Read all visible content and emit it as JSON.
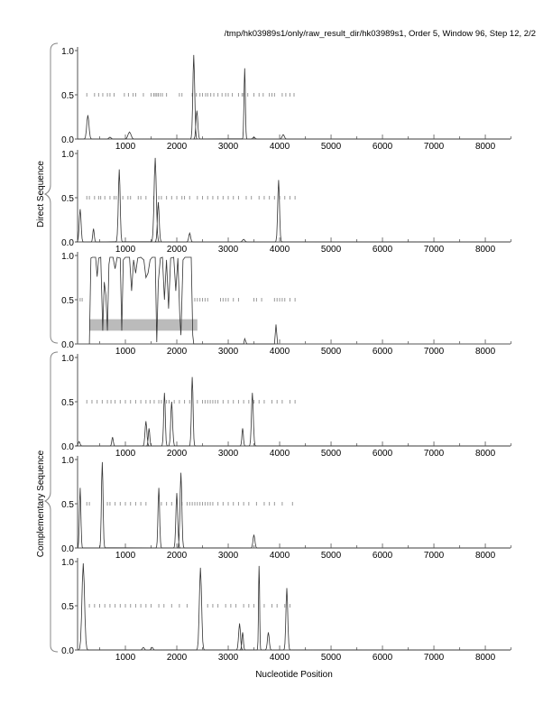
{
  "chart_data": {
    "type": "line",
    "title": "/tmp/hk03989s1/only/raw_result_dir/hk03989s1, Order 5, Window 96, Step 12, 2/2",
    "xlabel": "Nucleotide Position",
    "group_labels": [
      "Direct Sequence",
      "Complementary Sequence"
    ],
    "xlim": [
      70,
      8490
    ],
    "ylim": [
      0,
      1
    ],
    "xticks": [
      1000,
      2000,
      3000,
      4000,
      5000,
      6000,
      7000,
      8000
    ],
    "yticks": [
      "0.0",
      "0.5",
      "1.0"
    ],
    "panels": [
      {
        "group": "Direct Sequence",
        "peaks": [
          [
            270,
            0.27,
            30
          ],
          [
            700,
            0.02,
            30
          ],
          [
            1080,
            0.08,
            40
          ],
          [
            2330,
            0.95,
            25
          ],
          [
            2390,
            0.32,
            25
          ],
          [
            3320,
            0.8,
            18
          ],
          [
            3500,
            0.02,
            30
          ],
          [
            4070,
            0.05,
            30
          ]
        ],
        "markers": [
          250,
          400,
          480,
          560,
          650,
          700,
          780,
          980,
          1060,
          1150,
          1200,
          1350,
          1500,
          1550,
          1580,
          1610,
          1640,
          1680,
          1720,
          1800,
          2050,
          2100,
          2300,
          2380,
          2450,
          2500,
          2560,
          2600,
          2660,
          2720,
          2800,
          2880,
          2950,
          3000,
          3080,
          3200,
          3270,
          3300,
          3380,
          3500,
          3600,
          3680,
          3800,
          3850,
          3900,
          4050,
          4120,
          4200,
          4280
        ]
      },
      {
        "group": "Direct Sequence",
        "peaks": [
          [
            120,
            0.37,
            25
          ],
          [
            380,
            0.15,
            20
          ],
          [
            880,
            0.82,
            25
          ],
          [
            1580,
            0.95,
            30
          ],
          [
            1640,
            0.45,
            25
          ],
          [
            2250,
            0.1,
            25
          ],
          [
            3300,
            0.03,
            30
          ],
          [
            3980,
            0.7,
            25
          ]
        ],
        "markers": [
          250,
          300,
          400,
          480,
          520,
          600,
          700,
          780,
          820,
          950,
          1050,
          1100,
          1250,
          1300,
          1400,
          1550,
          1650,
          1700,
          1800,
          1900,
          2000,
          2100,
          2150,
          2250,
          2400,
          2500,
          2600,
          2700,
          2800,
          2900,
          3000,
          3100,
          3200,
          3350,
          3450,
          3600,
          3700,
          3800,
          3900,
          4000,
          4100,
          4200,
          4300
        ]
      },
      {
        "group": "Direct Sequence",
        "points": [
          [
            300,
            0
          ],
          [
            330,
            0.97
          ],
          [
            360,
            0.98
          ],
          [
            420,
            0.98
          ],
          [
            450,
            0.76
          ],
          [
            480,
            0.97
          ],
          [
            520,
            0.98
          ],
          [
            560,
            0.15
          ],
          [
            590,
            0.7
          ],
          [
            620,
            0.55
          ],
          [
            650,
            0.15
          ],
          [
            680,
            0.9
          ],
          [
            700,
            0.98
          ],
          [
            760,
            0.98
          ],
          [
            800,
            0.85
          ],
          [
            840,
            0.98
          ],
          [
            900,
            0.97
          ],
          [
            930,
            0.15
          ],
          [
            960,
            0.95
          ],
          [
            1000,
            0.98
          ],
          [
            1080,
            0.98
          ],
          [
            1120,
            0.6
          ],
          [
            1160,
            0.95
          ],
          [
            1200,
            0.8
          ],
          [
            1240,
            0.97
          ],
          [
            1300,
            0.98
          ],
          [
            1360,
            0.95
          ],
          [
            1400,
            0.75
          ],
          [
            1440,
            0.8
          ],
          [
            1480,
            0.95
          ],
          [
            1520,
            0.98
          ],
          [
            1580,
            0.98
          ],
          [
            1610,
            0.02
          ],
          [
            1640,
            0.7
          ],
          [
            1680,
            0.97
          ],
          [
            1720,
            0.98
          ],
          [
            1760,
            0.5
          ],
          [
            1800,
            0.95
          ],
          [
            1840,
            0.4
          ],
          [
            1880,
            0.97
          ],
          [
            1940,
            0.98
          ],
          [
            1980,
            0.6
          ],
          [
            2020,
            0.97
          ],
          [
            2060,
            0.3
          ],
          [
            2080,
            0.1
          ],
          [
            2120,
            0.95
          ],
          [
            2160,
            0.98
          ],
          [
            2280,
            0.98
          ],
          [
            2310,
            0.1
          ],
          [
            2330,
            0
          ],
          [
            3300,
            0
          ],
          [
            3320,
            0.06
          ],
          [
            3360,
            0
          ],
          [
            3900,
            0
          ],
          [
            3930,
            0.22
          ],
          [
            3960,
            0
          ]
        ],
        "band": {
          "x": [
            300,
            2400
          ],
          "y": [
            0.15,
            0.28
          ]
        },
        "markers": [
          120,
          160,
          2350,
          2400,
          2450,
          2500,
          2550,
          2600,
          2850,
          2900,
          2950,
          3000,
          3100,
          3200,
          3500,
          3550,
          3650,
          3900,
          3950,
          4000,
          4050,
          4100,
          4200,
          4300
        ]
      },
      {
        "group": "Complementary Sequence",
        "peaks": [
          [
            100,
            0.05,
            25
          ],
          [
            750,
            0.1,
            20
          ],
          [
            1400,
            0.28,
            25
          ],
          [
            1460,
            0.2,
            20
          ],
          [
            1760,
            0.6,
            22
          ],
          [
            1900,
            0.5,
            25
          ],
          [
            2300,
            0.78,
            22
          ],
          [
            3280,
            0.2,
            20
          ],
          [
            3470,
            0.6,
            25
          ]
        ],
        "markers": [
          250,
          350,
          450,
          550,
          650,
          720,
          800,
          900,
          1000,
          1100,
          1200,
          1300,
          1400,
          1480,
          1560,
          1650,
          1700,
          1800,
          1850,
          1950,
          2050,
          2150,
          2250,
          2400,
          2500,
          2550,
          2600,
          2650,
          2700,
          2750,
          2800,
          2900,
          3000,
          3100,
          3200,
          3300,
          3400,
          3500,
          3600,
          3700,
          3850,
          3950,
          4050,
          4200,
          4300
        ]
      },
      {
        "group": "Complementary Sequence",
        "peaks": [
          [
            120,
            0.68,
            20
          ],
          [
            550,
            0.97,
            22
          ],
          [
            1650,
            0.68,
            22
          ],
          [
            2000,
            0.62,
            25
          ],
          [
            2080,
            0.85,
            25
          ],
          [
            3500,
            0.15,
            25
          ]
        ],
        "markers": [
          250,
          300,
          650,
          700,
          800,
          900,
          1000,
          1100,
          1200,
          1300,
          1400,
          1700,
          1800,
          1900,
          2100,
          2200,
          2250,
          2300,
          2350,
          2400,
          2450,
          2500,
          2550,
          2600,
          2650,
          2700,
          2800,
          2900,
          3000,
          3100,
          3200,
          3300,
          3400,
          3550,
          3700,
          3800,
          3900,
          4050,
          4250
        ]
      },
      {
        "group": "Complementary Sequence",
        "peaks": [
          [
            180,
            0.98,
            35
          ],
          [
            1350,
            0.03,
            25
          ],
          [
            1520,
            0.03,
            25
          ],
          [
            2460,
            0.93,
            30
          ],
          [
            3220,
            0.3,
            25
          ],
          [
            3280,
            0.2,
            20
          ],
          [
            3600,
            0.95,
            15
          ],
          [
            3780,
            0.2,
            25
          ],
          [
            4140,
            0.7,
            25
          ]
        ],
        "markers": [
          300,
          400,
          500,
          600,
          700,
          800,
          900,
          1000,
          1100,
          1200,
          1300,
          1400,
          1500,
          1650,
          1750,
          1900,
          2050,
          2200,
          2600,
          2700,
          2800,
          2950,
          3050,
          3150,
          3300,
          3400,
          3500,
          3700,
          3850,
          3950,
          4100,
          4200
        ]
      }
    ]
  }
}
